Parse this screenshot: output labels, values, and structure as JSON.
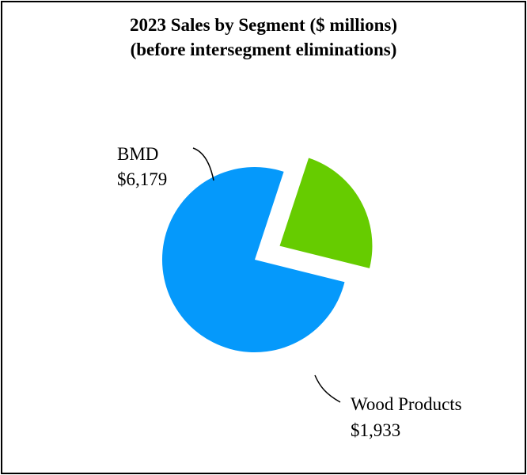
{
  "chart_data": {
    "type": "pie",
    "title": "2023 Sales by Segment ($ millions)",
    "subtitle": "(before intersegment eliminations)",
    "slices": [
      {
        "label": "BMD",
        "value": 6179,
        "value_label": "$6,179",
        "color": "#0599fb",
        "exploded": false
      },
      {
        "label": "Wood Products",
        "value": 1933,
        "value_label": "$1,933",
        "color": "#66cc00",
        "exploded": true
      }
    ],
    "legend": "none"
  }
}
